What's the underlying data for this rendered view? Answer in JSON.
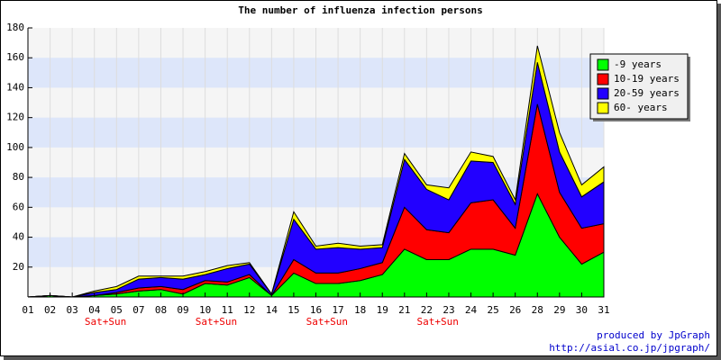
{
  "chart_data": {
    "type": "stacked_area",
    "title": "The number of influenza infection persons",
    "categories": [
      "01",
      "02",
      "03",
      "04",
      "05",
      "07",
      "08",
      "09",
      "10",
      "11",
      "12",
      "14",
      "15",
      "16",
      "17",
      "18",
      "19",
      "21",
      "22",
      "23",
      "24",
      "25",
      "26",
      "28",
      "29",
      "30",
      "31"
    ],
    "series": [
      {
        "name": "-9 years",
        "color": "#00ff00",
        "values": [
          0,
          1,
          0,
          1,
          2,
          4,
          5,
          2,
          9,
          8,
          13,
          1,
          16,
          9,
          9,
          11,
          15,
          32,
          25,
          25,
          32,
          32,
          28,
          69,
          40,
          22,
          30
        ]
      },
      {
        "name": "10-19 years",
        "color": "#ff0000",
        "values": [
          0,
          0,
          0,
          0,
          1,
          2,
          2,
          3,
          2,
          2,
          2,
          0,
          9,
          7,
          7,
          8,
          8,
          28,
          20,
          18,
          31,
          33,
          18,
          60,
          30,
          24,
          19
        ]
      },
      {
        "name": "20-59 years",
        "color": "#2200ff",
        "values": [
          0,
          0,
          0,
          2,
          2,
          6,
          6,
          7,
          4,
          9,
          7,
          1,
          27,
          16,
          17,
          13,
          10,
          32,
          27,
          22,
          28,
          25,
          16,
          28,
          27,
          21,
          28
        ]
      },
      {
        "name": "60- years",
        "color": "#ffff00",
        "values": [
          0,
          0,
          0,
          1,
          2,
          2,
          1,
          2,
          2,
          2,
          1,
          0,
          5,
          2,
          3,
          2,
          2,
          4,
          3,
          8,
          6,
          4,
          3,
          11,
          13,
          8,
          10
        ]
      }
    ],
    "ylim": [
      0,
      180
    ],
    "yticks": [
      20,
      40,
      60,
      80,
      100,
      120,
      140,
      160,
      180
    ],
    "grid": true,
    "legend": "top-right",
    "annotations": [
      {
        "text": "Sat+Sun",
        "between": [
          "04",
          "05"
        ]
      },
      {
        "text": "Sat+Sun",
        "between": [
          "10",
          "11"
        ]
      },
      {
        "text": "Sat+Sun",
        "between": [
          "16",
          "17"
        ]
      },
      {
        "text": "Sat+Sun",
        "between": [
          "22",
          "23"
        ]
      }
    ],
    "credits": [
      "produced by JpGraph",
      "http://asial.co.jp/jpgraph/"
    ]
  }
}
